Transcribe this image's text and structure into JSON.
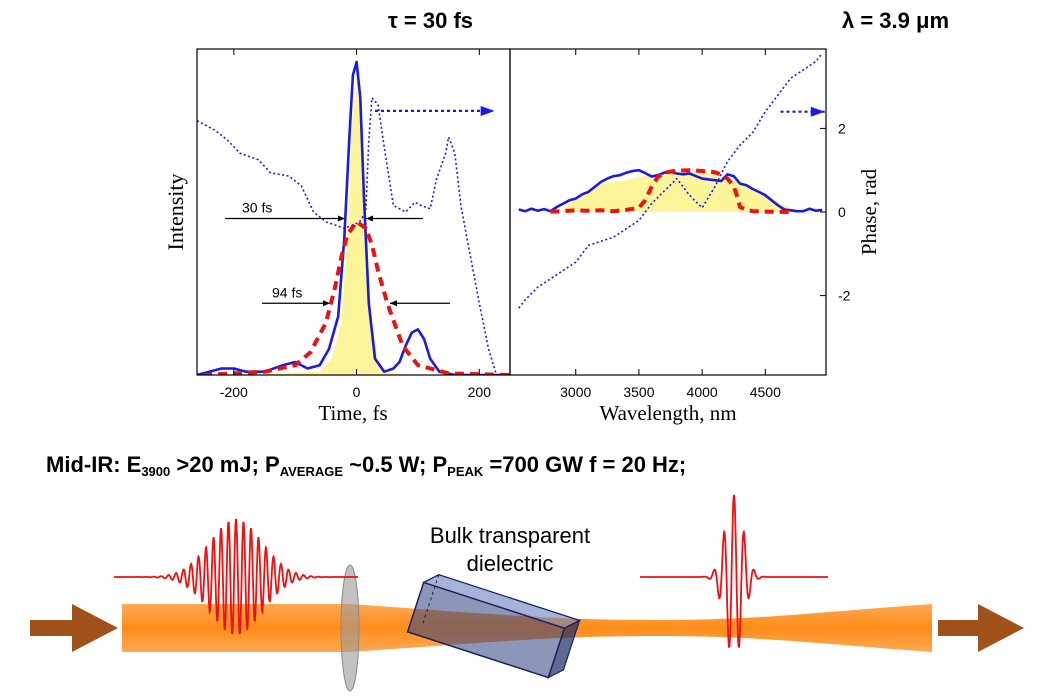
{
  "header": {
    "tau_label": "τ = 30 fs",
    "lambda_label": "λ = 3.9 μm"
  },
  "spec_line": {
    "prefix": "Mid-IR:  E",
    "energy_sub": "3900",
    "energy": " >20 mJ; P",
    "avg_sub": "AVERAGE",
    "avg": " ~0.5 W; P",
    "peak_sub": "PEAK",
    "peak": " =700 GW  f = 20 Hz;"
  },
  "diagram": {
    "dielectric_label": "Bulk transparent dielectric",
    "colors": {
      "beam": "#ff8c1a",
      "pulse": "#ee1111",
      "arrow": "#a0521a",
      "crystal": "#2e3f7f",
      "lens": "#9a9a9a"
    }
  },
  "chart_data": [
    {
      "type": "line",
      "panel": "time",
      "xlabel": "Time, fs",
      "ylabel": "Intensity",
      "xlim": [
        -260,
        250
      ],
      "ylim": [
        0,
        1.0
      ],
      "xticks": [
        -200,
        0,
        200
      ],
      "tick_labels": [
        "-200",
        "0",
        "200"
      ],
      "annotations": [
        {
          "text": "30 fs",
          "y": 0.48
        },
        {
          "text": "94 fs",
          "y": 0.22
        }
      ],
      "series": [
        {
          "style": "yellow fill",
          "x": [
            -260,
            -60,
            -40,
            -25,
            -15,
            -8,
            0,
            8,
            15,
            25,
            35,
            50,
            80,
            250
          ],
          "y": [
            0,
            0.01,
            0.05,
            0.16,
            0.42,
            0.74,
            0.93,
            0.74,
            0.42,
            0.16,
            0.05,
            0.01,
            0,
            0
          ]
        },
        {
          "style": "blue solid",
          "x": [
            -260,
            -240,
            -220,
            -200,
            -180,
            -150,
            -120,
            -100,
            -80,
            -60,
            -45,
            -30,
            -20,
            -12,
            -6,
            0,
            6,
            12,
            20,
            30,
            45,
            60,
            70,
            80,
            90,
            100,
            110,
            120,
            135,
            160,
            250
          ],
          "y": [
            0,
            0.01,
            0.02,
            0.02,
            0.01,
            0.01,
            0.03,
            0.04,
            0.02,
            0.03,
            0.08,
            0.18,
            0.42,
            0.72,
            0.92,
            0.96,
            0.85,
            0.55,
            0.22,
            0.05,
            0.01,
            0.02,
            0.04,
            0.09,
            0.13,
            0.14,
            0.11,
            0.05,
            0.01,
            0,
            0
          ]
        },
        {
          "style": "red dashed",
          "x": [
            -250,
            -200,
            -150,
            -100,
            -75,
            -50,
            -35,
            -25,
            -15,
            0,
            15,
            25,
            35,
            50,
            75,
            100,
            150,
            250
          ],
          "y": [
            0,
            0.005,
            0.01,
            0.03,
            0.07,
            0.16,
            0.27,
            0.36,
            0.43,
            0.47,
            0.45,
            0.4,
            0.32,
            0.22,
            0.09,
            0.03,
            0.005,
            0
          ]
        },
        {
          "style": "blue dotted",
          "x": [
            -260,
            -230,
            -210,
            -190,
            -160,
            -140,
            -110,
            -90,
            -70,
            -50,
            -35,
            -20,
            -5,
            5,
            15,
            20,
            25,
            35,
            45,
            60,
            80,
            95,
            105,
            120,
            130,
            145,
            150,
            160,
            170,
            180,
            200,
            215,
            228
          ],
          "y": [
            0.78,
            0.75,
            0.72,
            0.68,
            0.66,
            0.62,
            0.61,
            0.58,
            0.5,
            0.47,
            0.46,
            0.45,
            0.46,
            0.47,
            0.5,
            0.72,
            0.85,
            0.83,
            0.7,
            0.52,
            0.5,
            0.53,
            0.52,
            0.51,
            0.6,
            0.68,
            0.73,
            0.68,
            0.52,
            0.42,
            0.22,
            0.08,
            0.0
          ]
        },
        {
          "style": "blue dotted arrow",
          "x": [
            30,
            225
          ],
          "y": [
            0.81,
            0.81
          ]
        }
      ]
    },
    {
      "type": "line",
      "panel": "spectrum",
      "xlabel": "Wavelength, nm",
      "ylabel": "Phase, rad",
      "xlim": [
        2480,
        4980
      ],
      "ylim": [
        -3.9,
        3.9
      ],
      "xticks": [
        3000,
        3500,
        4000,
        4500
      ],
      "tick_labels": [
        "3000",
        "3500",
        "4000",
        "4500"
      ],
      "right_ticks": [
        2,
        0,
        -2
      ],
      "right_tick_labels": [
        "2",
        "0",
        "-2"
      ],
      "series": [
        {
          "style": "yellow fill",
          "x": [
            2850,
            2900,
            2950,
            3000,
            3100,
            3200,
            3300,
            3400,
            3500,
            3550,
            3600,
            3700,
            3800,
            3900,
            4000,
            4100,
            4200,
            4300,
            4400,
            4500,
            4600,
            4700,
            4800
          ],
          "y": [
            0,
            0.05,
            0.18,
            0.35,
            0.55,
            0.68,
            0.72,
            0.76,
            0.84,
            0.86,
            0.88,
            0.93,
            0.96,
            0.98,
            0.97,
            0.9,
            0.8,
            0.7,
            0.52,
            0.38,
            0.22,
            0.1,
            0
          ]
        },
        {
          "style": "blue solid",
          "x": [
            2550,
            2600,
            2650,
            2700,
            2750,
            2800,
            2850,
            2900,
            2950,
            3000,
            3050,
            3100,
            3150,
            3200,
            3250,
            3300,
            3350,
            3400,
            3450,
            3500,
            3550,
            3600,
            3650,
            3700,
            3750,
            3800,
            3850,
            3900,
            3950,
            4000,
            4050,
            4100,
            4150,
            4200,
            4250,
            4300,
            4350,
            4400,
            4450,
            4500,
            4550,
            4600,
            4650,
            4700,
            4750,
            4800,
            4850,
            4900,
            4950
          ],
          "y": [
            0.06,
            0.02,
            0.08,
            0.03,
            0.07,
            0.02,
            0.12,
            0.2,
            0.28,
            0.32,
            0.42,
            0.48,
            0.6,
            0.72,
            0.8,
            0.86,
            0.88,
            0.94,
            0.98,
            1.0,
            0.93,
            0.85,
            0.88,
            0.94,
            0.96,
            0.92,
            0.9,
            0.92,
            0.86,
            0.8,
            0.78,
            0.76,
            0.74,
            0.9,
            0.86,
            0.68,
            0.64,
            0.55,
            0.48,
            0.4,
            0.28,
            0.16,
            0.06,
            0.04,
            0.02,
            0.02,
            0.08,
            0.03,
            0.05
          ]
        },
        {
          "style": "red dashed",
          "x": [
            2800,
            2900,
            3000,
            3100,
            3200,
            3300,
            3400,
            3500,
            3550,
            3600,
            3650,
            3700,
            3800,
            3900,
            3950,
            4000,
            4100,
            4150,
            4200,
            4250,
            4280,
            4300,
            4350,
            4400,
            4500,
            4700
          ],
          "y": [
            0.01,
            0.02,
            0.04,
            0.03,
            0.04,
            0.02,
            0.05,
            0.1,
            0.28,
            0.6,
            0.84,
            0.94,
            0.99,
            1.0,
            0.99,
            0.98,
            0.95,
            0.9,
            0.8,
            0.62,
            0.35,
            0.12,
            0.05,
            0.02,
            0.01,
            0
          ]
        },
        {
          "style": "blue dotted phase",
          "x": [
            2550,
            2600,
            2700,
            2800,
            2900,
            3000,
            3100,
            3200,
            3300,
            3400,
            3500,
            3600,
            3700,
            3800,
            3900,
            4000,
            4100,
            4200,
            4300,
            4400,
            4500,
            4600,
            4700,
            4800,
            4900,
            4950
          ],
          "y": [
            -2.3,
            -2.1,
            -1.8,
            -1.6,
            -1.4,
            -1.2,
            -0.8,
            -0.7,
            -0.6,
            -0.4,
            -0.2,
            0.2,
            0.5,
            0.8,
            0.4,
            0.1,
            0.6,
            1.2,
            1.6,
            1.9,
            2.4,
            2.8,
            3.2,
            3.4,
            3.6,
            3.8
          ]
        },
        {
          "style": "blue dotted arrow",
          "x": [
            4620,
            4970
          ],
          "y": [
            2.4,
            2.4
          ]
        }
      ]
    }
  ]
}
